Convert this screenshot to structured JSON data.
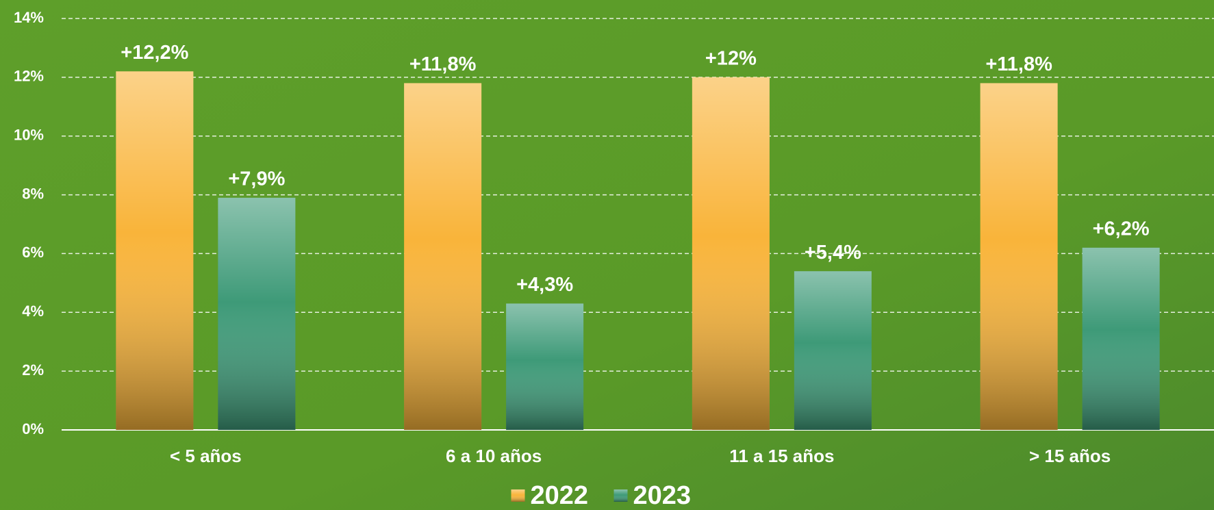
{
  "chart_data": {
    "type": "bar",
    "categories": [
      "< 5 años",
      "6 a 10 años",
      "11 a 15 años",
      "> 15 años"
    ],
    "series": [
      {
        "name": "2022",
        "color": "#f9b43a",
        "values": [
          12.2,
          11.8,
          12,
          11.8
        ],
        "value_labels": [
          "+12,2%",
          "+11,8%",
          "+12%",
          "+11,8%"
        ]
      },
      {
        "name": "2023",
        "color": "#3e9a78",
        "values": [
          7.9,
          4.3,
          5.4,
          6.2
        ],
        "value_labels": [
          "+7,9%",
          "+4,3%",
          "+5,4%",
          "+6,2%"
        ]
      }
    ],
    "ylim": [
      0,
      14
    ],
    "yticks": [
      {
        "value": 0,
        "label": "0%"
      },
      {
        "value": 2,
        "label": "2%"
      },
      {
        "value": 4,
        "label": "4%"
      },
      {
        "value": 6,
        "label": "6%"
      },
      {
        "value": 8,
        "label": "8%"
      },
      {
        "value": 10,
        "label": "10%"
      },
      {
        "value": 12,
        "label": "12%"
      },
      {
        "value": 14,
        "label": "14%"
      }
    ],
    "grid": true,
    "legend": "bottom"
  }
}
